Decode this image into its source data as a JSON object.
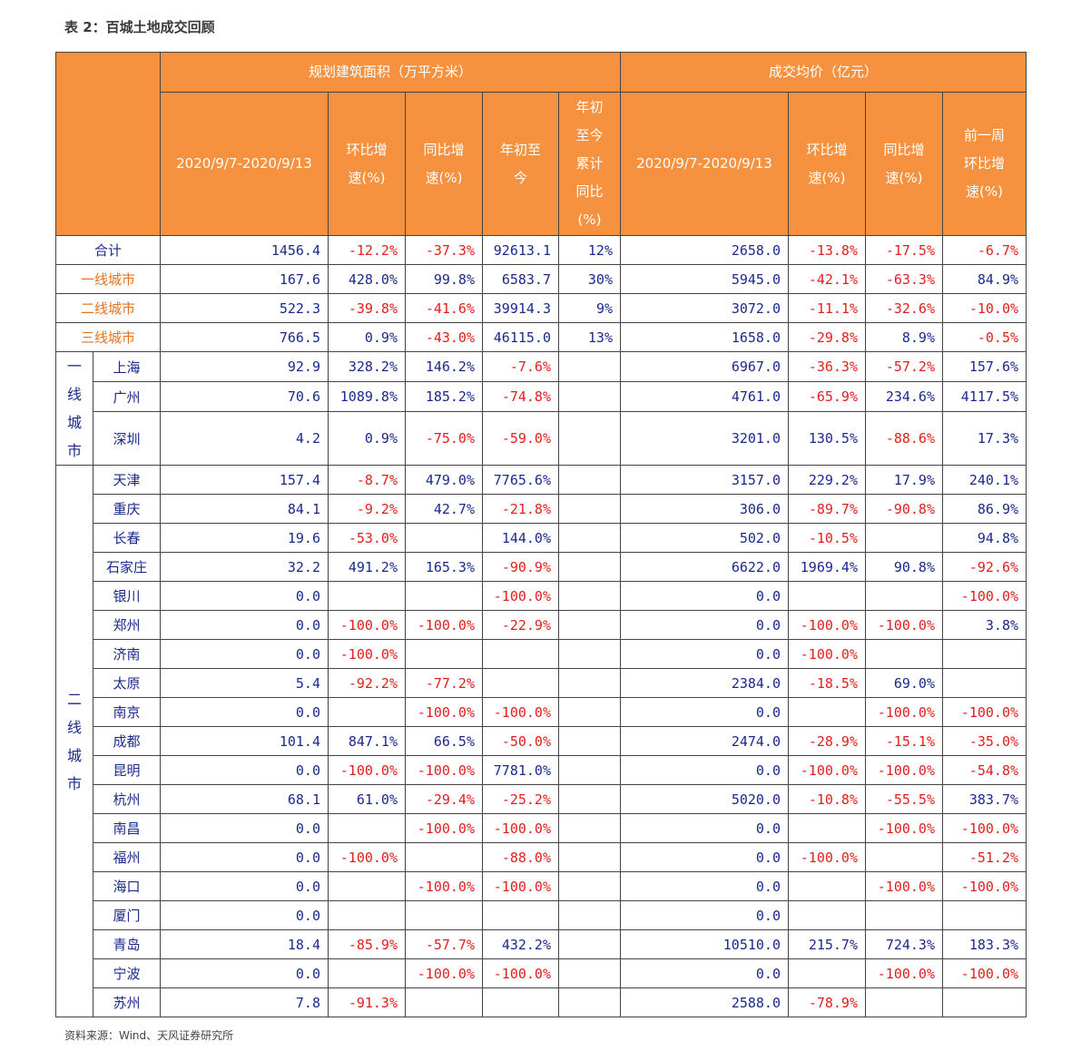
{
  "title": "表 2：百城土地成交回顾",
  "source": "资料来源：Wind、天风证券研究所",
  "header": {
    "group1": "规划建筑面积（万平方米）",
    "group2": "成交均价（亿元）",
    "cols": [
      "2020/9/7-2020/9/13",
      "环比增\n速(%)",
      "同比增\n速(%)",
      "年初至\n今",
      "年初\n至今\n累计\n同比\n(%)",
      "2020/9/7-2020/9/13",
      "环比增\n速(%)",
      "同比增\n速(%)",
      "前一周\n环比增\n速(%)"
    ]
  },
  "summary": [
    {
      "name": "合计",
      "vals": [
        "1456.4",
        "-12.2%",
        "-37.3%",
        "92613.1",
        "12%",
        "2658.0",
        "-13.8%",
        "-17.5%",
        "-6.7%"
      ]
    },
    {
      "name": "一线城市",
      "vals": [
        "167.6",
        "428.0%",
        "99.8%",
        "6583.7",
        "30%",
        "5945.0",
        "-42.1%",
        "-63.3%",
        "84.9%"
      ]
    },
    {
      "name": "二线城市",
      "vals": [
        "522.3",
        "-39.8%",
        "-41.6%",
        "39914.3",
        "9%",
        "3072.0",
        "-11.1%",
        "-32.6%",
        "-10.0%"
      ]
    },
    {
      "name": "三线城市",
      "vals": [
        "766.5",
        "0.9%",
        "-43.0%",
        "46115.0",
        "13%",
        "1658.0",
        "-29.8%",
        "8.9%",
        "-0.5%"
      ]
    }
  ],
  "group_tier1": "一\n线\n城\n市",
  "group_tier2": "二\n线\n城\n市",
  "tier1": [
    {
      "name": "上海",
      "vals": [
        "92.9",
        "328.2%",
        "146.2%",
        "-7.6%",
        "",
        "6967.0",
        "-36.3%",
        "-57.2%",
        "157.6%"
      ]
    },
    {
      "name": "广州",
      "vals": [
        "70.6",
        "1089.8%",
        "185.2%",
        "-74.8%",
        "",
        "4761.0",
        "-65.9%",
        "234.6%",
        "4117.5%"
      ]
    },
    {
      "name": "深圳",
      "vals": [
        "4.2",
        "0.9%",
        "-75.0%",
        "-59.0%",
        "",
        "3201.0",
        "130.5%",
        "-88.6%",
        "17.3%"
      ]
    }
  ],
  "tier2": [
    {
      "name": "天津",
      "vals": [
        "157.4",
        "-8.7%",
        "479.0%",
        "7765.6%",
        "",
        "3157.0",
        "229.2%",
        "17.9%",
        "240.1%"
      ]
    },
    {
      "name": "重庆",
      "vals": [
        "84.1",
        "-9.2%",
        "42.7%",
        "-21.8%",
        "",
        "306.0",
        "-89.7%",
        "-90.8%",
        "86.9%"
      ]
    },
    {
      "name": "长春",
      "vals": [
        "19.6",
        "-53.0%",
        "",
        "144.0%",
        "",
        "502.0",
        "-10.5%",
        "",
        "94.8%"
      ]
    },
    {
      "name": "石家庄",
      "vals": [
        "32.2",
        "491.2%",
        "165.3%",
        "-90.9%",
        "",
        "6622.0",
        "1969.4%",
        "90.8%",
        "-92.6%"
      ]
    },
    {
      "name": "银川",
      "vals": [
        "0.0",
        "",
        "",
        "-100.0%",
        "",
        "0.0",
        "",
        "",
        "-100.0%"
      ]
    },
    {
      "name": "郑州",
      "vals": [
        "0.0",
        "-100.0%",
        "-100.0%",
        "-22.9%",
        "",
        "0.0",
        "-100.0%",
        "-100.0%",
        "3.8%"
      ]
    },
    {
      "name": "济南",
      "vals": [
        "0.0",
        "-100.0%",
        "",
        "",
        "",
        "0.0",
        "-100.0%",
        "",
        ""
      ]
    },
    {
      "name": "太原",
      "vals": [
        "5.4",
        "-92.2%",
        "-77.2%",
        "",
        "",
        "2384.0",
        "-18.5%",
        "69.0%",
        ""
      ]
    },
    {
      "name": "南京",
      "vals": [
        "0.0",
        "",
        "-100.0%",
        "-100.0%",
        "",
        "0.0",
        "",
        "-100.0%",
        "-100.0%"
      ]
    },
    {
      "name": "成都",
      "vals": [
        "101.4",
        "847.1%",
        "66.5%",
        "-50.0%",
        "",
        "2474.0",
        "-28.9%",
        "-15.1%",
        "-35.0%"
      ]
    },
    {
      "name": "昆明",
      "vals": [
        "0.0",
        "-100.0%",
        "-100.0%",
        "7781.0%",
        "",
        "0.0",
        "-100.0%",
        "-100.0%",
        "-54.8%"
      ]
    },
    {
      "name": "杭州",
      "vals": [
        "68.1",
        "61.0%",
        "-29.4%",
        "-25.2%",
        "",
        "5020.0",
        "-10.8%",
        "-55.5%",
        "383.7%"
      ]
    },
    {
      "name": "南昌",
      "vals": [
        "0.0",
        "",
        "-100.0%",
        "-100.0%",
        "",
        "0.0",
        "",
        "-100.0%",
        "-100.0%"
      ]
    },
    {
      "name": "福州",
      "vals": [
        "0.0",
        "-100.0%",
        "",
        "-88.0%",
        "",
        "0.0",
        "-100.0%",
        "",
        "-51.2%"
      ]
    },
    {
      "name": "海口",
      "vals": [
        "0.0",
        "",
        "-100.0%",
        "-100.0%",
        "",
        "0.0",
        "",
        "-100.0%",
        "-100.0%"
      ]
    },
    {
      "name": "厦门",
      "vals": [
        "0.0",
        "",
        "",
        "",
        "",
        "0.0",
        "",
        "",
        ""
      ]
    },
    {
      "name": "青岛",
      "vals": [
        "18.4",
        "-85.9%",
        "-57.7%",
        "432.2%",
        "",
        "10510.0",
        "215.7%",
        "724.3%",
        "183.3%"
      ]
    },
    {
      "name": "宁波",
      "vals": [
        "0.0",
        "",
        "-100.0%",
        "-100.0%",
        "",
        "0.0",
        "",
        "-100.0%",
        "-100.0%"
      ]
    },
    {
      "name": "苏州",
      "vals": [
        "7.8",
        "-91.3%",
        "",
        "",
        "",
        "2588.0",
        "-78.9%",
        "",
        ""
      ]
    }
  ]
}
